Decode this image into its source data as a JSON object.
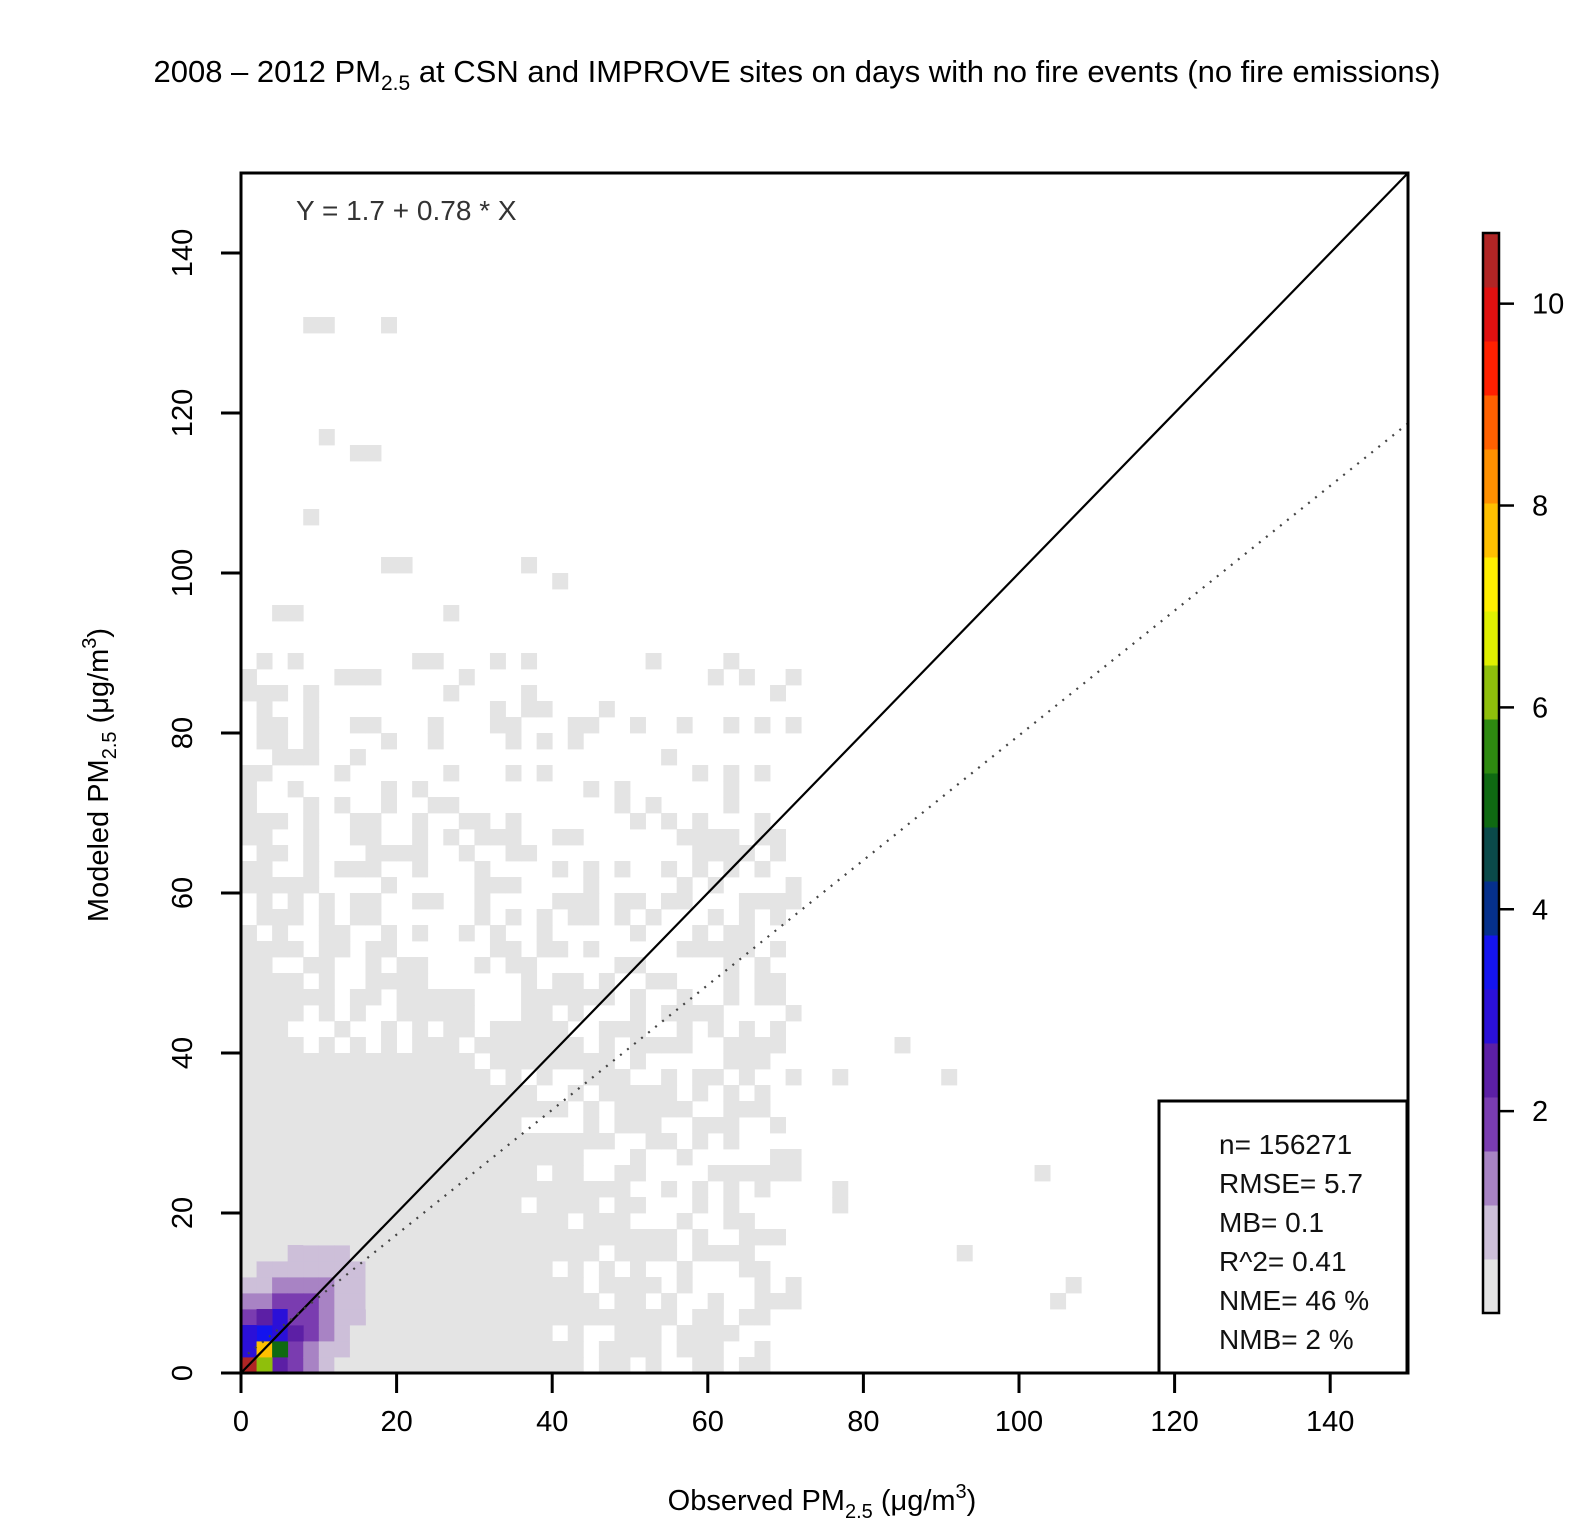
{
  "chart_data": {
    "type": "heatmap",
    "title": {
      "prefix": "2008 – 2012 PM",
      "sub": "2.5",
      "suffix": " at CSN and IMPROVE sites on days with no fire events (no fire emissions)"
    },
    "xlabel": {
      "prefix": "Observed PM",
      "sub": "2.5",
      "suffix": " (μg/m",
      "sup": "3",
      "end": ")"
    },
    "ylabel": {
      "prefix": "Modeled PM",
      "sub": "2.5",
      "suffix": " (μg/m",
      "sup": "3",
      "end": ")"
    },
    "xlim": [
      0,
      150
    ],
    "ylim": [
      0,
      150
    ],
    "x_ticks": [
      "0",
      "20",
      "40",
      "60",
      "80",
      "100",
      "120",
      "140"
    ],
    "y_ticks": [
      "0",
      "20",
      "40",
      "60",
      "80",
      "100",
      "120",
      "140"
    ],
    "regression_label": "Y = 1.7 + 0.78 * X",
    "regression": {
      "intercept": 1.7,
      "slope": 0.78
    },
    "one_to_one_line": true,
    "stats": [
      "n= 156271",
      "RMSE= 5.7",
      "MB= 0.1",
      "R^2= 0.41",
      "NME= 46 %",
      "NMB= 2 %"
    ],
    "colorbar": {
      "ticks": [
        "2",
        "4",
        "6",
        "8",
        "10"
      ],
      "range": [
        0,
        10.7
      ],
      "colors": [
        "#e4e4e4",
        "#cdbfd9",
        "#a883c4",
        "#7a3cb0",
        "#5c1fa5",
        "#2b10d8",
        "#1414ee",
        "#05308c",
        "#0a4a4a",
        "#0f6a12",
        "#2e8a10",
        "#8fbf0b",
        "#e0f000",
        "#ffee00",
        "#ffc000",
        "#ff9000",
        "#ff6000",
        "#ff2000",
        "#e01010",
        "#b02525"
      ]
    },
    "cell_size": 2,
    "notable_cells": [
      {
        "x": 0,
        "y": 0,
        "value": 10.5
      },
      {
        "x": 2,
        "y": 0,
        "value": 6.2
      },
      {
        "x": 0,
        "y": 2,
        "value": 3.0
      },
      {
        "x": 2,
        "y": 2,
        "value": 8.0
      },
      {
        "x": 4,
        "y": 2,
        "value": 5.2
      },
      {
        "x": 2,
        "y": 4,
        "value": 3.3
      },
      {
        "x": 4,
        "y": 4,
        "value": 3.0
      },
      {
        "x": 0,
        "y": 4,
        "value": 3.1
      },
      {
        "x": 6,
        "y": 4,
        "value": 2.6
      },
      {
        "x": 4,
        "y": 6,
        "value": 3.1
      },
      {
        "x": 2,
        "y": 6,
        "value": 2.5
      },
      {
        "x": 6,
        "y": 6,
        "value": 2.0
      }
    ],
    "sparse_cells": [
      [
        8,
        130
      ],
      [
        10,
        130
      ],
      [
        18,
        130
      ],
      [
        10,
        116
      ],
      [
        14,
        114
      ],
      [
        16,
        114
      ],
      [
        8,
        106
      ],
      [
        18,
        100
      ],
      [
        20,
        100
      ],
      [
        36,
        100
      ],
      [
        40,
        98
      ],
      [
        4,
        94
      ],
      [
        6,
        94
      ],
      [
        26,
        94
      ],
      [
        14,
        86
      ],
      [
        16,
        86
      ],
      [
        24,
        88
      ],
      [
        8,
        82
      ],
      [
        32,
        82
      ],
      [
        36,
        82
      ],
      [
        38,
        82
      ],
      [
        16,
        80
      ],
      [
        24,
        80
      ],
      [
        38,
        78
      ],
      [
        54,
        58
      ],
      [
        48,
        56
      ],
      [
        60,
        52
      ],
      [
        66,
        48
      ],
      [
        56,
        44
      ],
      [
        84,
        40
      ],
      [
        76,
        36
      ],
      [
        90,
        36
      ],
      [
        62,
        32
      ],
      [
        64,
        32
      ],
      [
        66,
        32
      ],
      [
        62,
        30
      ],
      [
        70,
        26
      ],
      [
        76,
        22
      ],
      [
        76,
        20
      ],
      [
        102,
        24
      ],
      [
        92,
        14
      ],
      [
        106,
        10
      ],
      [
        104,
        8
      ],
      [
        64,
        6
      ],
      [
        60,
        8
      ],
      [
        52,
        4
      ],
      [
        48,
        2
      ]
    ]
  }
}
